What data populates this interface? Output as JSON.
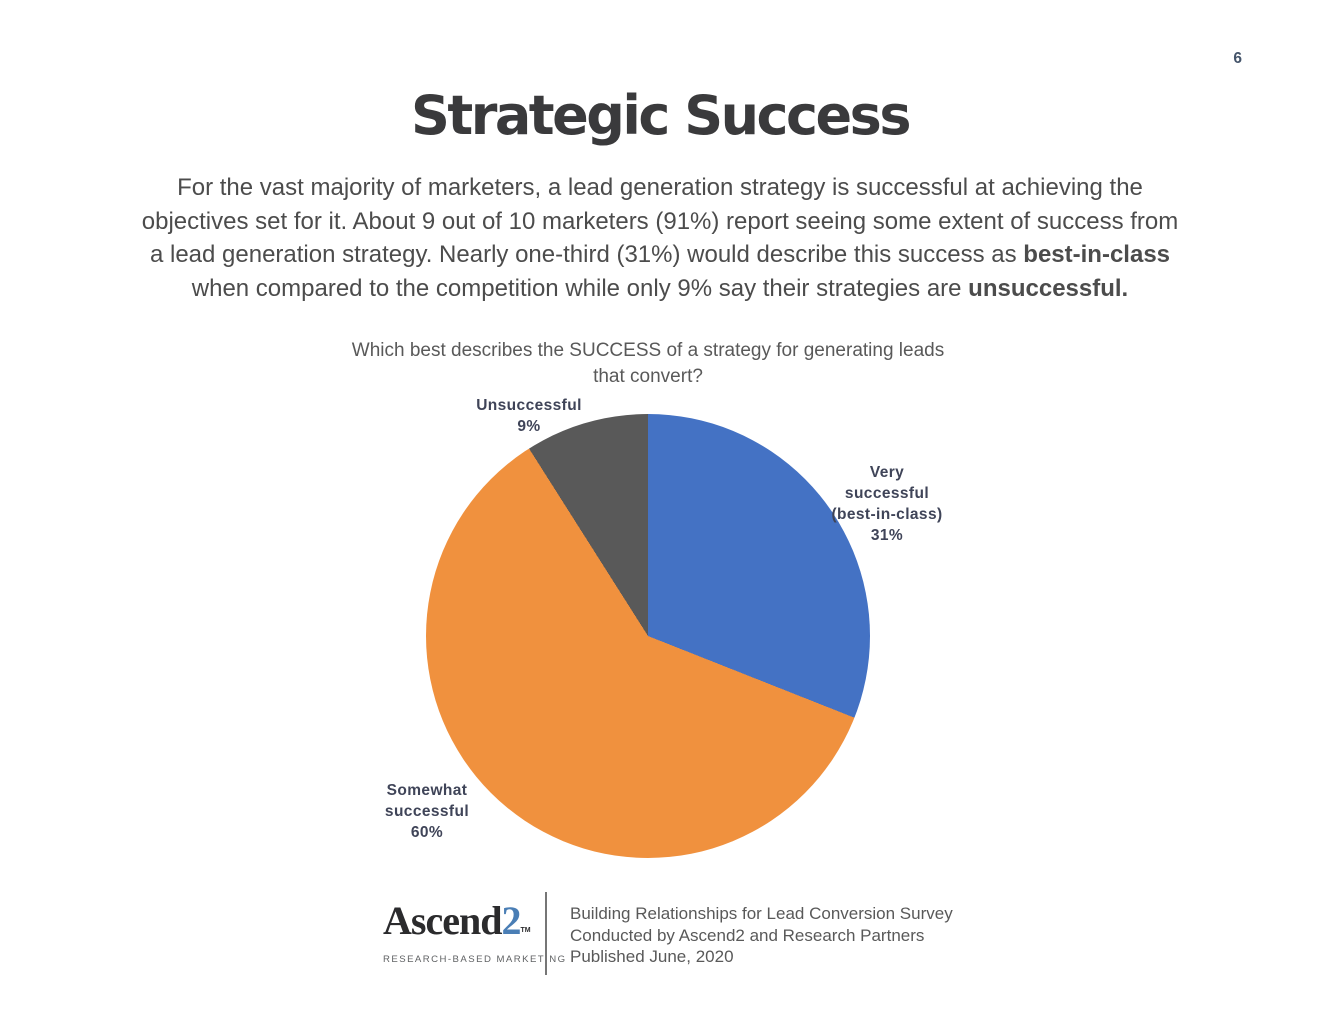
{
  "page": {
    "number": "6"
  },
  "title": "Strategic Success",
  "intro": {
    "line1": "For the vast majority of marketers, a lead generation strategy is successful at achieving the",
    "line2": "objectives set for it. About 9 out of 10 marketers (91%) report seeing some extent of success from",
    "line3_normal": "a lead generation strategy. Nearly one-third (31%) would describe this success as ",
    "line3_bold": "best-in-class",
    "line4_normal": "when compared to the competition while only 9% say their strategies are ",
    "line4_bold": "unsuccessful."
  },
  "chart_data": {
    "type": "pie",
    "title_line1": "Which best describes the SUCCESS of a strategy for generating leads",
    "title_line2": "that convert?",
    "categories": [
      "Very successful (best-in-class)",
      "Somewhat successful",
      "Unsuccessful"
    ],
    "values": [
      31,
      60,
      9
    ],
    "unit": "%",
    "start_angle_deg": 0,
    "direction": "clockwise",
    "legend": "none",
    "label_placement": "outside",
    "slices": [
      {
        "name": "Very successful (best-in-class)",
        "value": 31,
        "color": "#4472C4",
        "label_text": "Very\nsuccessful\n(best-in-class)\n31%"
      },
      {
        "name": "Somewhat successful",
        "value": 60,
        "color": "#F0913E",
        "label_text": "Somewhat\nsuccessful\n60%"
      },
      {
        "name": "Unsuccessful",
        "value": 9,
        "color": "#595959",
        "label_text": "Unsuccessful\n9%"
      }
    ]
  },
  "footer": {
    "logo": {
      "name_main": "Ascend",
      "name_accent": "2",
      "trademark": "TM",
      "tagline": "RESEARCH-BASED MARKETING",
      "accent_color": "#4A7EB5"
    },
    "citation_lines": [
      "Building Relationships for Lead Conversion Survey",
      "Conducted by Ascend2 and Research Partners",
      "Published June, 2020"
    ]
  }
}
